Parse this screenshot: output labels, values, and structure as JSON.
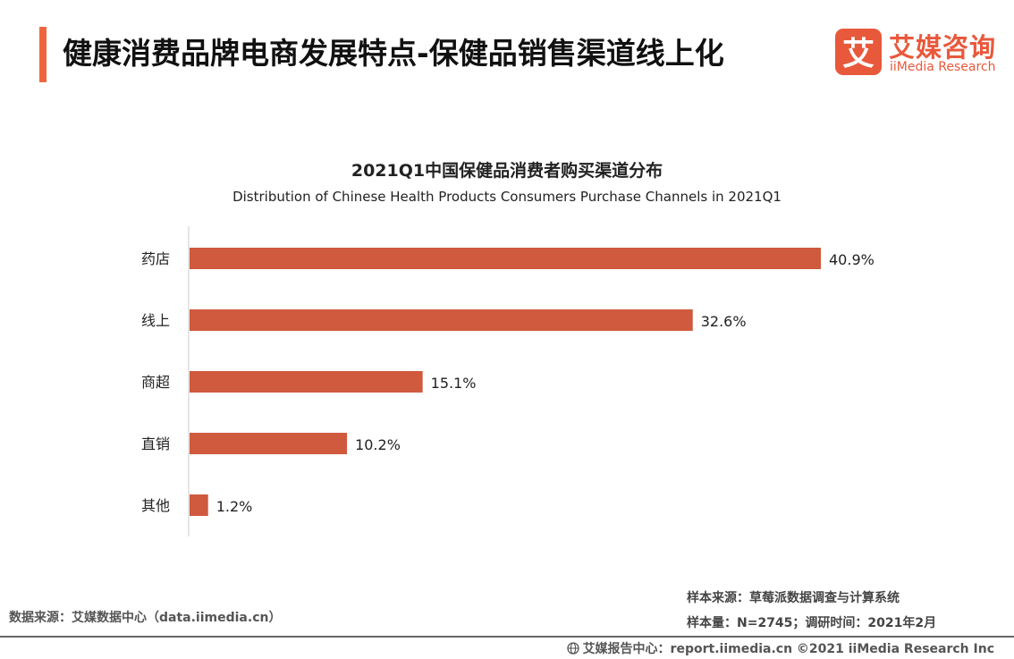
{
  "header": {
    "title": "健康消费品牌电商发展特点-保健品销售渠道线上化"
  },
  "logo": {
    "mark_char": "艾",
    "cn": "艾媒咨询",
    "en": "iiMedia Research",
    "color": "#e8593c"
  },
  "chart_data": {
    "type": "bar",
    "orientation": "horizontal",
    "title": "2021Q1中国保健品消费者购买渠道分布",
    "subtitle": "Distribution of Chinese Health Products Consumers Purchase Channels in 2021Q1",
    "categories": [
      "药店",
      "线上",
      "商超",
      "直销",
      "其他"
    ],
    "values": [
      40.9,
      32.6,
      15.1,
      10.2,
      1.2
    ],
    "value_labels": [
      "40.9%",
      "32.6%",
      "15.1%",
      "10.2%",
      "1.2%"
    ],
    "unit": "%",
    "xlim": [
      0,
      40.9
    ],
    "bar_color": "#d05a3d",
    "grid": false,
    "legend": "none"
  },
  "footer": {
    "source": "数据来源：艾媒数据中心（data.iimedia.cn）",
    "sample_source": "样本来源：草莓派数据调查与计算系统",
    "sample_size": "样本量：N=2745；调研时间：2021年2月",
    "copyright": "艾媒报告中心：report.iimedia.cn ©2021  iiMedia Research  Inc"
  }
}
